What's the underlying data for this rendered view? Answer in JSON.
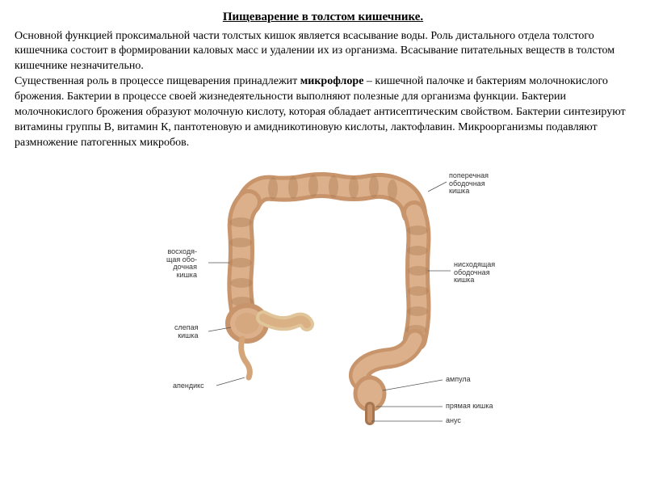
{
  "title": "Пищеварение в толстом кишечнике.",
  "paragraph1": "Основной функцией проксимальной части толстых кишок является всасывание воды. Роль дистального отдела толстого кишечника состоит в формировании каловых масс и удалении их из организма. Всасывание питательных веществ в толстом кишечнике незначительно.",
  "paragraph2_pre": "Существенная роль в процессе пищеварения принадлежит ",
  "paragraph2_hl": "микрофлоре",
  "paragraph2_post": " – кишечной палочке и бактериям молочнокислого брожения. Бактерии в процессе своей жизнедеятельности выполняют полезные для организма функции. Бактерии молочнокислого брожения образуют молочную кислоту, которая обладает антисептическим свойством. Бактерии синтезируют витамины группы В, витамин К, пантотеновую и амидникотиновую кислоты, лактофлавин. Микроорганизмы подавляют размножение патогенных микробов.",
  "labels": {
    "transverse": "поперечная\nободочная\nкишка",
    "descending": "нисходящая\nободочная\nкишка",
    "ascending": "восходя-\nщая обо-\nдочная\nкишка",
    "cecum": "слепая\nкишка",
    "appendix": "апендикс",
    "ampulla": "ампула",
    "rectum": "прямая кишка",
    "anus": "анус"
  },
  "colors": {
    "colon_outer": "#c8946b",
    "colon_inner": "#dbb08a",
    "colon_shadow": "#a67650",
    "appendix": "#d4a578",
    "ileum_l": "#e0c49a",
    "label_color": "#333333"
  }
}
